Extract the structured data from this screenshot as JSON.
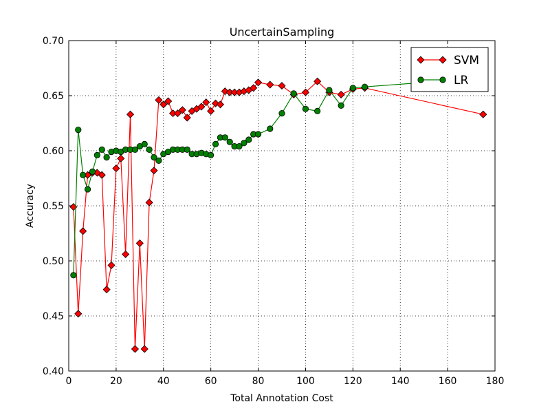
{
  "chart_data": {
    "type": "line",
    "title": "UncertainSampling",
    "xlabel": "Total Annotation Cost",
    "ylabel": "Accuracy",
    "xlim": [
      0,
      180
    ],
    "ylim": [
      0.4,
      0.7
    ],
    "xticks": [
      0,
      20,
      40,
      60,
      80,
      100,
      120,
      140,
      160,
      180
    ],
    "yticks": [
      0.4,
      0.45,
      0.5,
      0.55,
      0.6,
      0.65,
      0.7
    ],
    "xtick_labels": [
      "0",
      "20",
      "40",
      "60",
      "80",
      "100",
      "120",
      "140",
      "160",
      "180"
    ],
    "ytick_labels": [
      "0.40",
      "0.45",
      "0.50",
      "0.55",
      "0.60",
      "0.65",
      "0.70"
    ],
    "grid": true,
    "legend_position": "top-right",
    "series": [
      {
        "name": "SVM",
        "color": "#ff0000",
        "marker": "diamond",
        "x": [
          2,
          4,
          6,
          8,
          10,
          12,
          14,
          16,
          18,
          20,
          22,
          24,
          26,
          28,
          30,
          32,
          34,
          36,
          38,
          40,
          42,
          44,
          46,
          48,
          50,
          52,
          54,
          56,
          58,
          60,
          62,
          64,
          66,
          68,
          70,
          72,
          74,
          76,
          78,
          80,
          85,
          90,
          95,
          100,
          105,
          110,
          115,
          120,
          125,
          175
        ],
        "y": [
          0.549,
          0.452,
          0.527,
          0.578,
          0.58,
          0.58,
          0.578,
          0.474,
          0.496,
          0.584,
          0.593,
          0.506,
          0.633,
          0.42,
          0.516,
          0.42,
          0.553,
          0.582,
          0.646,
          0.642,
          0.645,
          0.634,
          0.634,
          0.637,
          0.63,
          0.636,
          0.638,
          0.64,
          0.644,
          0.636,
          0.643,
          0.642,
          0.654,
          0.653,
          0.653,
          0.653,
          0.654,
          0.655,
          0.657,
          0.662,
          0.66,
          0.659,
          0.651,
          0.653,
          0.663,
          0.653,
          0.651,
          0.656,
          0.657,
          0.633
        ]
      },
      {
        "name": "LR",
        "color": "#008000",
        "marker": "circle",
        "x": [
          2,
          4,
          6,
          8,
          10,
          12,
          14,
          16,
          18,
          20,
          22,
          24,
          26,
          28,
          30,
          32,
          34,
          36,
          38,
          40,
          42,
          44,
          46,
          48,
          50,
          52,
          54,
          56,
          58,
          60,
          62,
          64,
          66,
          68,
          70,
          72,
          74,
          76,
          78,
          80,
          85,
          90,
          95,
          100,
          105,
          110,
          115,
          120,
          125,
          175
        ],
        "y": [
          0.487,
          0.619,
          0.578,
          0.565,
          0.581,
          0.596,
          0.601,
          0.594,
          0.599,
          0.6,
          0.599,
          0.601,
          0.601,
          0.601,
          0.604,
          0.606,
          0.601,
          0.594,
          0.591,
          0.597,
          0.599,
          0.601,
          0.601,
          0.601,
          0.601,
          0.597,
          0.597,
          0.598,
          0.597,
          0.596,
          0.606,
          0.612,
          0.612,
          0.608,
          0.604,
          0.604,
          0.607,
          0.61,
          0.615,
          0.615,
          0.62,
          0.634,
          0.652,
          0.638,
          0.636,
          0.655,
          0.641,
          0.657,
          0.658,
          0.666
        ]
      }
    ]
  }
}
